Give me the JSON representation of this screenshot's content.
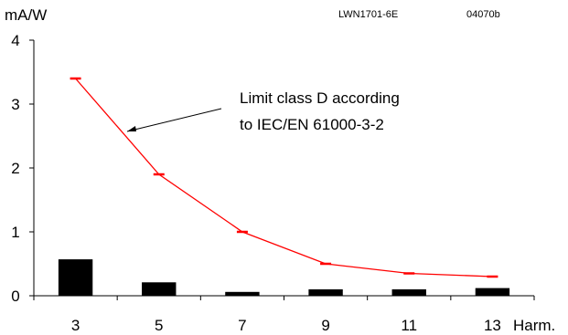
{
  "chart_data": {
    "type": "bar",
    "categories": [
      "3",
      "5",
      "7",
      "9",
      "11",
      "13"
    ],
    "series": [
      {
        "kind": "bar",
        "values": [
          0.57,
          0.21,
          0.06,
          0.1,
          0.1,
          0.12
        ],
        "color": "#000000"
      },
      {
        "kind": "line",
        "values": [
          3.4,
          1.9,
          1.0,
          0.5,
          0.35,
          0.3
        ],
        "color": "#ff0000"
      }
    ],
    "ylabel": "mA/W",
    "xlabel": "Harm.",
    "ylim": [
      0,
      4
    ],
    "yticks": [
      "0",
      "1",
      "2",
      "3",
      "4"
    ],
    "doc_code": "LWN1701-6E",
    "doc_ref": "04070b",
    "annotation": {
      "line1": "Limit class D according",
      "line2": "to IEC/EN 61000-3-2",
      "points_to_series": 1
    },
    "grid": false
  }
}
